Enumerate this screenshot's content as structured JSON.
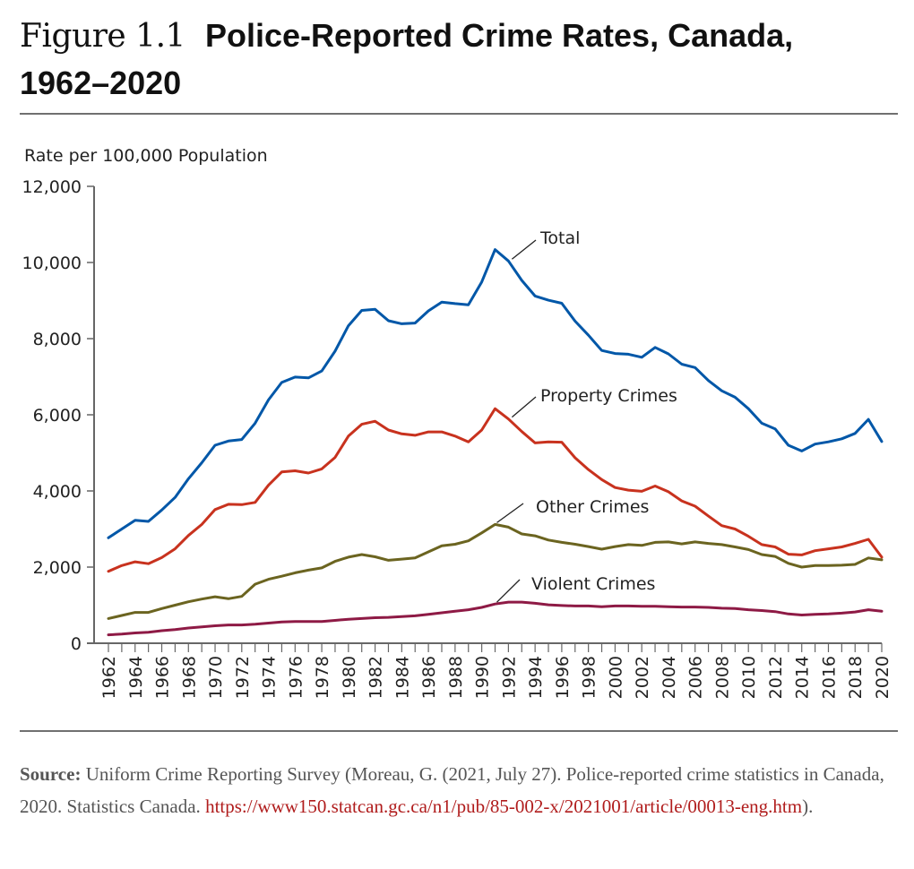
{
  "figure": {
    "number": "Figure 1.1",
    "title_line1": "Police-Reported Crime Rates, Canada,",
    "title_line2": "1962–2020"
  },
  "source": {
    "label": "Source:",
    "text": "Uniform Crime Reporting Survey (Moreau, G. (2021, July 27). Police-reported crime statistics in Canada, 2020. Statistics Canada.",
    "link": "https://www150.statcan.gc.ca/n1/pub/85-002-x/2021001/article/00013-eng.htm",
    "tail": ")."
  },
  "colors": {
    "total": "#0057a8",
    "property": "#c8321e",
    "other": "#6b6420",
    "violent": "#8e1a45",
    "axis": "#666666"
  },
  "chart_data": {
    "type": "line",
    "title": "Police-Reported Crime Rates, Canada, 1962–2020",
    "ylabel": "Rate per 100,000 Population",
    "xlabel": "",
    "ylim": [
      0,
      12000
    ],
    "yticks": [
      0,
      2000,
      4000,
      6000,
      8000,
      10000,
      12000
    ],
    "ytick_labels": [
      "0",
      "2,000",
      "4,000",
      "6,000",
      "8,000",
      "10,000",
      "12,000"
    ],
    "xlim": [
      1962,
      2020
    ],
    "xtick_labels": [
      "1962",
      "1964",
      "1966",
      "1968",
      "1970",
      "1972",
      "1974",
      "1976",
      "1978",
      "1980",
      "1982",
      "1984",
      "1986",
      "1988",
      "1990",
      "1992",
      "1994",
      "1996",
      "1998",
      "2000",
      "2002",
      "2004",
      "2006",
      "2008",
      "2010",
      "2012",
      "2014",
      "2016",
      "2018",
      "2020"
    ],
    "grid": false,
    "legend": "inline labels",
    "x": [
      1962,
      1963,
      1964,
      1965,
      1966,
      1967,
      1968,
      1969,
      1970,
      1971,
      1972,
      1973,
      1974,
      1975,
      1976,
      1977,
      1978,
      1979,
      1980,
      1981,
      1982,
      1983,
      1984,
      1985,
      1986,
      1987,
      1988,
      1989,
      1990,
      1991,
      1992,
      1993,
      1994,
      1995,
      1996,
      1997,
      1998,
      1999,
      2000,
      2001,
      2002,
      2003,
      2004,
      2005,
      2006,
      2007,
      2008,
      2009,
      2010,
      2011,
      2012,
      2013,
      2014,
      2015,
      2016,
      2017,
      2018,
      2019,
      2020
    ],
    "series": [
      {
        "name": "Total",
        "key": "total",
        "label_year": 1992,
        "values": [
          2770,
          3000,
          3230,
          3200,
          3500,
          3830,
          4320,
          4740,
          5200,
          5310,
          5350,
          5780,
          6390,
          6850,
          6990,
          6970,
          7150,
          7670,
          8340,
          8740,
          8770,
          8470,
          8390,
          8410,
          8730,
          8960,
          8920,
          8890,
          9490,
          10340,
          10040,
          9530,
          9120,
          9010,
          8930,
          8460,
          8090,
          7690,
          7610,
          7590,
          7510,
          7770,
          7600,
          7330,
          7240,
          6900,
          6630,
          6460,
          6160,
          5780,
          5630,
          5200,
          5050,
          5230,
          5290,
          5370,
          5510,
          5880,
          5300
        ]
      },
      {
        "name": "Property Crimes",
        "key": "property",
        "label_year": 1992,
        "values": [
          1890,
          2040,
          2140,
          2090,
          2250,
          2480,
          2830,
          3120,
          3510,
          3650,
          3640,
          3700,
          4150,
          4500,
          4530,
          4470,
          4580,
          4880,
          5440,
          5750,
          5830,
          5600,
          5500,
          5460,
          5550,
          5550,
          5440,
          5290,
          5600,
          6160,
          5890,
          5560,
          5260,
          5290,
          5280,
          4870,
          4560,
          4300,
          4090,
          4020,
          3990,
          4130,
          3980,
          3740,
          3600,
          3340,
          3090,
          3000,
          2810,
          2590,
          2530,
          2340,
          2320,
          2430,
          2480,
          2530,
          2620,
          2730,
          2260
        ]
      },
      {
        "name": "Other Crimes",
        "key": "other",
        "label_year": 1991,
        "values": [
          650,
          730,
          810,
          810,
          910,
          1000,
          1090,
          1160,
          1220,
          1170,
          1230,
          1550,
          1680,
          1760,
          1850,
          1920,
          1980,
          2150,
          2260,
          2330,
          2270,
          2180,
          2210,
          2240,
          2400,
          2560,
          2600,
          2690,
          2900,
          3120,
          3050,
          2870,
          2820,
          2710,
          2650,
          2600,
          2540,
          2470,
          2540,
          2590,
          2570,
          2650,
          2660,
          2610,
          2660,
          2620,
          2590,
          2530,
          2460,
          2330,
          2280,
          2100,
          2000,
          2040,
          2040,
          2050,
          2070,
          2240,
          2190
        ]
      },
      {
        "name": "Violent Crimes",
        "key": "violent",
        "label_year": 1991,
        "values": [
          220,
          240,
          270,
          290,
          330,
          360,
          400,
          430,
          460,
          480,
          480,
          500,
          530,
          560,
          570,
          570,
          570,
          600,
          630,
          650,
          670,
          680,
          700,
          720,
          760,
          800,
          840,
          880,
          940,
          1030,
          1080,
          1080,
          1050,
          1010,
          990,
          980,
          980,
          960,
          980,
          980,
          970,
          970,
          960,
          950,
          950,
          940,
          920,
          910,
          880,
          860,
          830,
          770,
          740,
          760,
          770,
          790,
          820,
          880,
          840
        ]
      }
    ]
  }
}
